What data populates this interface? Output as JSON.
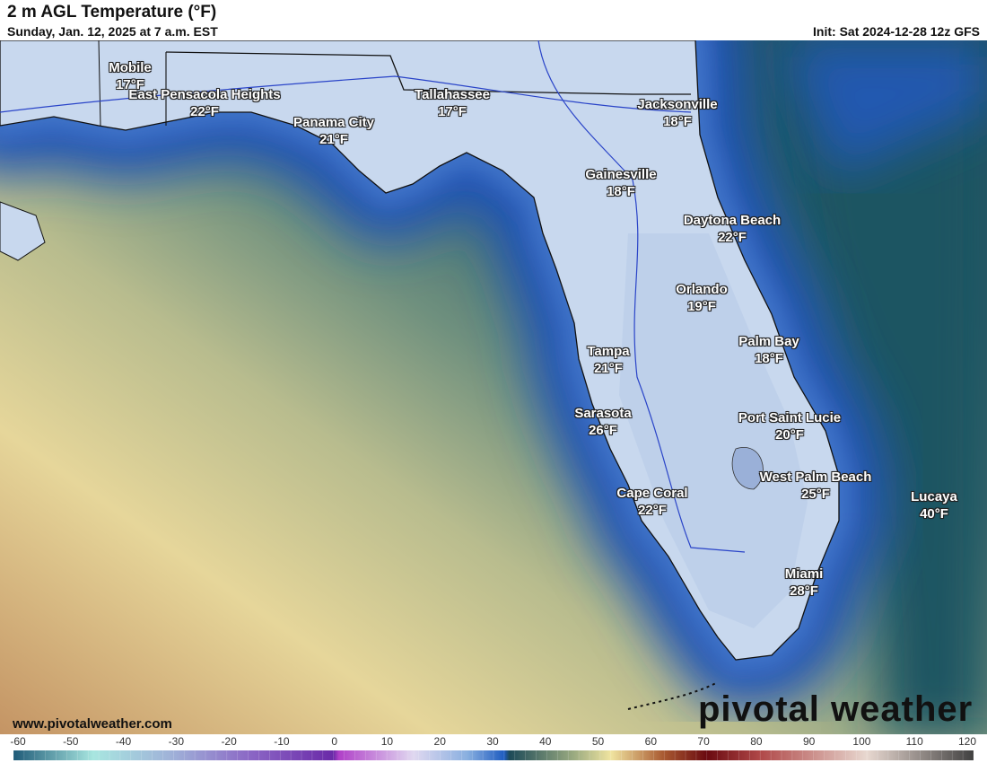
{
  "header": {
    "title": "2 m AGL Temperature (°F)",
    "valid": "Sunday, Jan. 12, 2025 at 7 a.m. EST",
    "init": "Init: Sat 2024-12-28 12z GFS"
  },
  "cities": [
    {
      "name": "Mobile",
      "temp": "17°F"
    },
    {
      "name": "East Pensacola Heights",
      "temp": "22°F"
    },
    {
      "name": "Panama City",
      "temp": "21°F"
    },
    {
      "name": "Tallahassee",
      "temp": "17°F"
    },
    {
      "name": "Jacksonville",
      "temp": "18°F"
    },
    {
      "name": "Gainesville",
      "temp": "18°F"
    },
    {
      "name": "Daytona Beach",
      "temp": "22°F"
    },
    {
      "name": "Orlando",
      "temp": "19°F"
    },
    {
      "name": "Palm Bay",
      "temp": "18°F"
    },
    {
      "name": "Tampa",
      "temp": "21°F"
    },
    {
      "name": "Sarasota",
      "temp": "26°F"
    },
    {
      "name": "Port Saint Lucie",
      "temp": "20°F"
    },
    {
      "name": "West Palm Beach",
      "temp": "25°F"
    },
    {
      "name": "Cape Coral",
      "temp": "22°F"
    },
    {
      "name": "Lucaya",
      "temp": "40°F"
    },
    {
      "name": "Miami",
      "temp": "28°F"
    }
  ],
  "footer": {
    "url": "www.pivotalweather.com",
    "logo": "pivotal weather"
  },
  "colorbar": {
    "unit": "°F",
    "min": -60,
    "max": 120,
    "ticks": [
      "-60",
      "-50",
      "-40",
      "-30",
      "-20",
      "-10",
      "0",
      "10",
      "20",
      "30",
      "40",
      "50",
      "60",
      "70",
      "80",
      "90",
      "100",
      "110",
      "120"
    ],
    "stops": [
      {
        "v": -60,
        "c": "#1f5b78"
      },
      {
        "v": -45,
        "c": "#a8e6e0"
      },
      {
        "v": -30,
        "c": "#9fb0d8"
      },
      {
        "v": -15,
        "c": "#8a64c4"
      },
      {
        "v": 0,
        "c": "#6a2aa8"
      },
      {
        "v": 1,
        "c": "#b040c8"
      },
      {
        "v": 15,
        "c": "#e0d8f0"
      },
      {
        "v": 25,
        "c": "#8ab0e0"
      },
      {
        "v": 32,
        "c": "#1f5cc0"
      },
      {
        "v": 33,
        "c": "#1d4a58"
      },
      {
        "v": 45,
        "c": "#9aaa80"
      },
      {
        "v": 52,
        "c": "#f0e4a0"
      },
      {
        "v": 62,
        "c": "#a85830"
      },
      {
        "v": 70,
        "c": "#6a0a10"
      },
      {
        "v": 80,
        "c": "#b04848"
      },
      {
        "v": 100,
        "c": "#e8d8d0"
      },
      {
        "v": 120,
        "c": "#404040"
      }
    ]
  },
  "colors": {
    "land": "#c8d8ee",
    "coast_water": "#2355b5",
    "deep_water": "#1e5464",
    "warm_water": "#e9dea0",
    "tan": "#c69a68"
  }
}
